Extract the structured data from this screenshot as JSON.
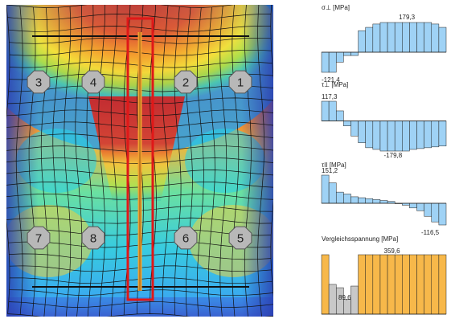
{
  "bolts": [
    {
      "label": "1"
    },
    {
      "label": "2"
    },
    {
      "label": "3"
    },
    {
      "label": "4"
    },
    {
      "label": "5"
    },
    {
      "label": "6"
    },
    {
      "label": "7"
    },
    {
      "label": "8"
    }
  ],
  "charts": [
    {
      "id": "sigma",
      "title": "σ⊥ [MPa]",
      "max_label": "179,3",
      "min_label": "-121,4",
      "max": 179.3,
      "min": -121.4,
      "values": [
        -121.4,
        -121.4,
        -60,
        -20,
        -20,
        130,
        150,
        170,
        179.3,
        179.3,
        179.3,
        179.3,
        179.3,
        179.3,
        179.3,
        170,
        150
      ],
      "fill": "#9fd2f5",
      "stroke": "#222222"
    },
    {
      "id": "tau_perp",
      "title": "τ⊥ [MPa]",
      "max_label": "117,3",
      "min_label": "-179,8",
      "max": 117.3,
      "min": -179.8,
      "values": [
        117.3,
        117.3,
        60,
        -30,
        -90,
        -130,
        -160,
        -170,
        -179.8,
        -179.8,
        -179.8,
        -179.8,
        -170,
        -165,
        -160,
        -155,
        -150
      ],
      "fill": "#9fd2f5",
      "stroke": "#222222"
    },
    {
      "id": "tau_par",
      "title": "τII [MPa]",
      "max_label": "151,2",
      "min_label": "-116,5",
      "max": 151.2,
      "min": -116.5,
      "values": [
        151.2,
        110,
        60,
        50,
        35,
        30,
        25,
        20,
        15,
        10,
        0,
        -10,
        -25,
        -40,
        -70,
        -100,
        -116.5
      ],
      "fill": "#9fd2f5",
      "stroke": "#222222"
    },
    {
      "id": "vgl",
      "title": "Vergleichsspannung [MPa]",
      "max_label": "359,6",
      "min_label": "89,6",
      "max": 359.6,
      "min": 0,
      "values": [
        359.6,
        180,
        160,
        89.6,
        170,
        359.6,
        359.6,
        359.6,
        359.6,
        359.6,
        359.6,
        359.6,
        359.6,
        359.6,
        359.6,
        359.6,
        359.6
      ],
      "colors": [
        "#f7b84a",
        "#c8c8c8",
        "#c8c8c8",
        "#c8c8c8",
        "#c8c8c8",
        "#f7b84a",
        "#f7b84a",
        "#f7b84a",
        "#f7b84a",
        "#f7b84a",
        "#f7b84a",
        "#f7b84a",
        "#f7b84a",
        "#f7b84a",
        "#f7b84a",
        "#f7b84a",
        "#f7b84a"
      ],
      "stroke": "#222222"
    }
  ]
}
